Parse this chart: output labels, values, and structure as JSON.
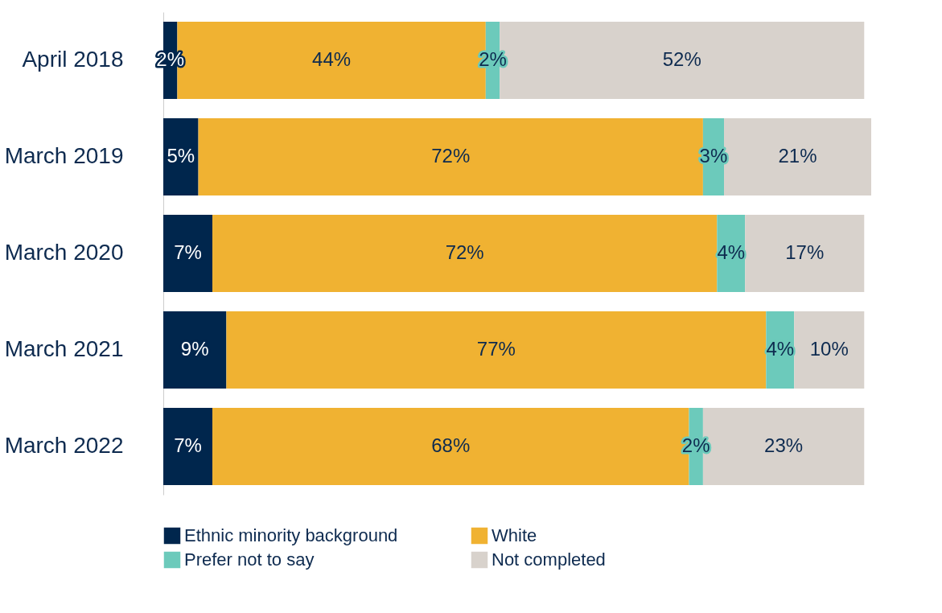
{
  "chart_data": {
    "type": "bar",
    "orientation": "horizontal",
    "stacked": true,
    "categories": [
      "April 2018",
      "March 2019",
      "March 2020",
      "March 2021",
      "March 2022"
    ],
    "series": [
      {
        "name": "Ethnic minority background",
        "color": "#00264d",
        "values": [
          2,
          5,
          7,
          9,
          7
        ],
        "value_labels": [
          "2%",
          "5%",
          "7%",
          "9%",
          "7%"
        ]
      },
      {
        "name": "White",
        "color": "#f0b232",
        "values": [
          44,
          72,
          72,
          77,
          68
        ],
        "value_labels": [
          "44%",
          "72%",
          "72%",
          "77%",
          "68%"
        ]
      },
      {
        "name": "Prefer not to say",
        "color": "#6ccabb",
        "values": [
          2,
          3,
          4,
          4,
          2
        ],
        "value_labels": [
          "2%",
          "3%",
          "4%",
          "4%",
          "2%"
        ]
      },
      {
        "name": "Not completed",
        "color": "#d8d2cc",
        "values": [
          52,
          21,
          17,
          10,
          23
        ],
        "value_labels": [
          "52%",
          "21%",
          "17%",
          "10%",
          "23%"
        ]
      }
    ],
    "xlim": [
      0,
      101
    ],
    "tick_labels": "y",
    "legend": "bottom"
  }
}
